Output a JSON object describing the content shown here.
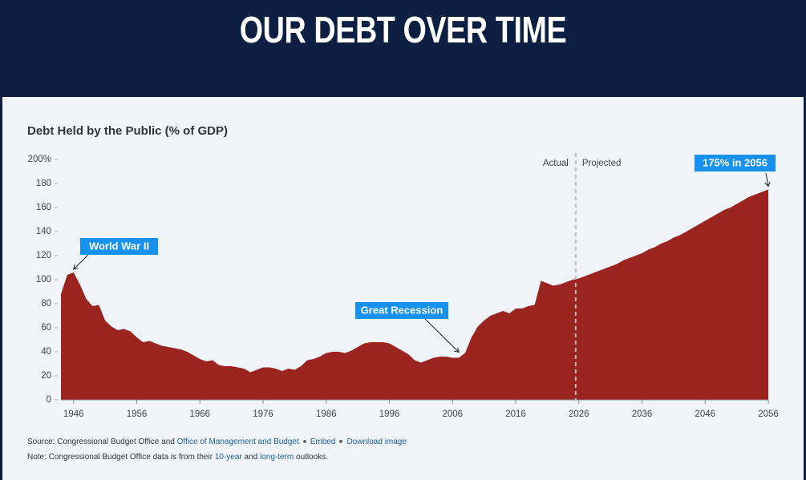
{
  "header": {
    "title": "OUR DEBT OVER TIME"
  },
  "chart_data": {
    "type": "area",
    "title": "Debt Held by the Public (% of GDP)",
    "x": [
      1944,
      1945,
      1946,
      1947,
      1948,
      1949,
      1950,
      1951,
      1952,
      1953,
      1954,
      1955,
      1956,
      1957,
      1958,
      1959,
      1960,
      1961,
      1962,
      1963,
      1964,
      1965,
      1966,
      1967,
      1968,
      1969,
      1970,
      1971,
      1972,
      1973,
      1974,
      1975,
      1976,
      1977,
      1978,
      1979,
      1980,
      1981,
      1982,
      1983,
      1984,
      1985,
      1986,
      1987,
      1988,
      1989,
      1990,
      1991,
      1992,
      1993,
      1994,
      1995,
      1996,
      1997,
      1998,
      1999,
      2000,
      2001,
      2002,
      2003,
      2004,
      2005,
      2006,
      2007,
      2008,
      2009,
      2010,
      2011,
      2012,
      2013,
      2014,
      2015,
      2016,
      2017,
      2018,
      2019,
      2020,
      2021,
      2022,
      2023,
      2024,
      2025,
      2026,
      2027,
      2028,
      2029,
      2030,
      2031,
      2032,
      2033,
      2034,
      2035,
      2036,
      2037,
      2038,
      2039,
      2040,
      2041,
      2042,
      2043,
      2044,
      2045,
      2046,
      2047,
      2048,
      2049,
      2050,
      2051,
      2052,
      2053,
      2054,
      2055,
      2056
    ],
    "series": [
      {
        "color": "#9b2420",
        "values": [
          88,
          104,
          106,
          96,
          84,
          78,
          79,
          66,
          61,
          58,
          59,
          57,
          52,
          48,
          49,
          47,
          45,
          44,
          43,
          42,
          40,
          37,
          34,
          32,
          33,
          29,
          28,
          28,
          27,
          26,
          23,
          25,
          27,
          27,
          26,
          24,
          26,
          25,
          28,
          33,
          34,
          36,
          39,
          40,
          40,
          39,
          41,
          44,
          47,
          48,
          48,
          48,
          47,
          44,
          41,
          38,
          33,
          31,
          33,
          35,
          36,
          36,
          35,
          35,
          39,
          52,
          61,
          66,
          70,
          72,
          74,
          72,
          76,
          76,
          78,
          79,
          99,
          97,
          95,
          96,
          98,
          100,
          101,
          103,
          105,
          107,
          109,
          111,
          113,
          116,
          118,
          120,
          122,
          125,
          127,
          130,
          132,
          135,
          137,
          140,
          143,
          146,
          149,
          152,
          155,
          158,
          160,
          163,
          166,
          169,
          171,
          173,
          175
        ]
      }
    ],
    "xlim": [
      1944,
      2056
    ],
    "xticks": [
      1946,
      1956,
      1966,
      1976,
      1986,
      1996,
      2006,
      2016,
      2026,
      2036,
      2046,
      2056
    ],
    "ylim": [
      0,
      200
    ],
    "yticks": [
      0,
      20,
      40,
      60,
      80,
      100,
      120,
      140,
      160,
      180,
      {
        "value": 200,
        "label": "200%"
      }
    ],
    "divider": {
      "x": 2025.5,
      "left_label": "Actual",
      "right_label": "Projected"
    },
    "annotations": [
      {
        "text": "World War II",
        "x": 1946,
        "y": 106
      },
      {
        "text": "Great Recession",
        "x": 2007,
        "y": 37
      },
      {
        "text": "175% in 2056",
        "x": 2056,
        "y": 175
      }
    ]
  },
  "footer": {
    "source": {
      "text": "Source: Congressional Budget Office and",
      "link": "Office of Management and Budget",
      "embed": "Embed",
      "download": "Download image"
    },
    "note": {
      "text": "Note: Congressional Budget Office data is from their",
      "link1": "10-year",
      "middle": "and",
      "link2": "long-term",
      "end": "outlooks."
    }
  }
}
